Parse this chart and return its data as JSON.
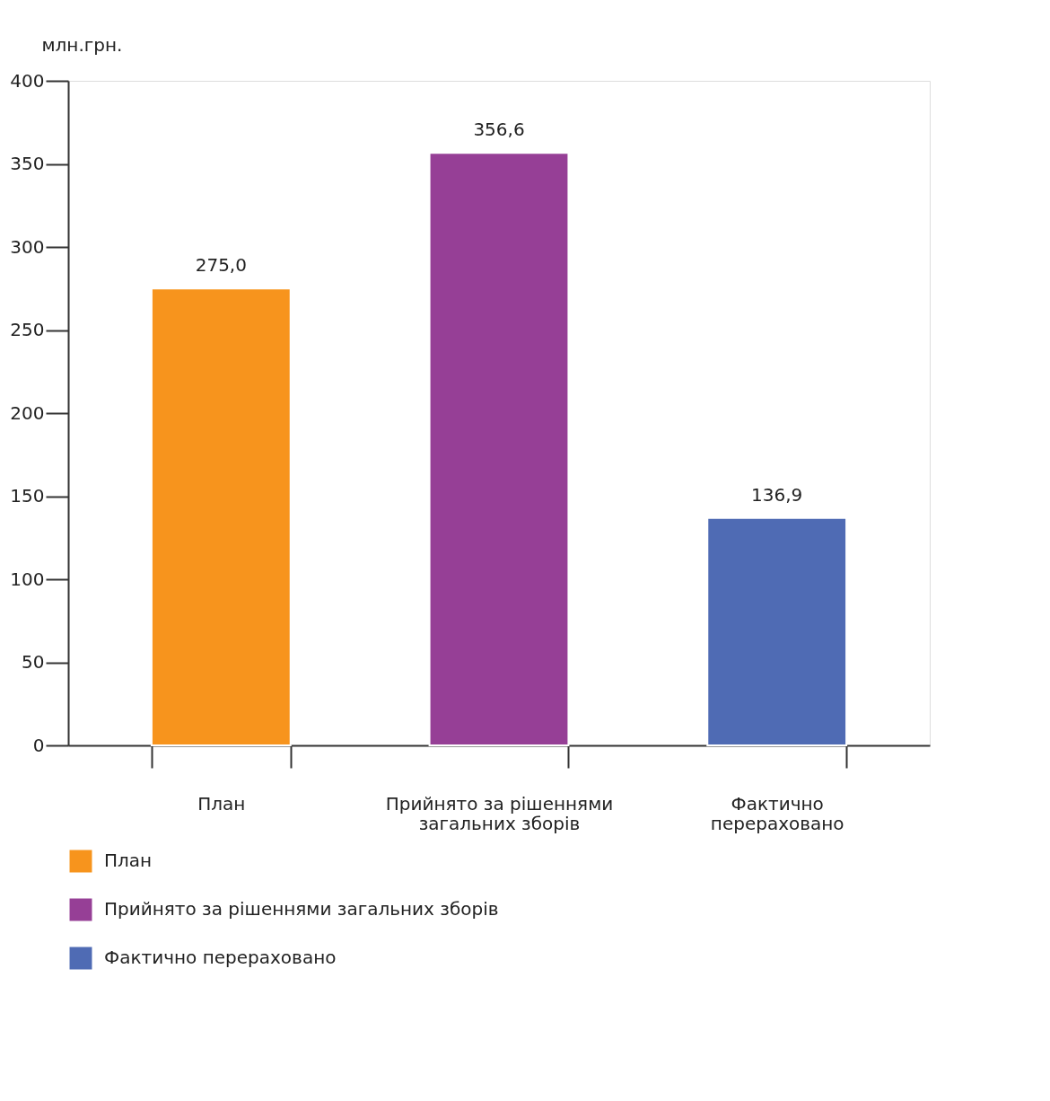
{
  "chart_data": {
    "type": "bar",
    "ylabel": "млн.грн.",
    "categories": [
      "План",
      "Прийнято за рішеннями загальних зборів",
      "Фактично перераховано"
    ],
    "stacked": true,
    "series": [
      {
        "name": "План",
        "color": "#f7941d",
        "values": [
          275.0,
          null,
          null
        ],
        "value_labels": [
          "275,0",
          null,
          null
        ]
      },
      {
        "name": "Прийнято за рішеннями загальних зборів",
        "color": "#963f96",
        "values": [
          null,
          356.6,
          null
        ],
        "value_labels": [
          null,
          "356,6",
          null
        ]
      },
      {
        "name": "Фактично перераховано",
        "color": "#4f6bb4",
        "values": [
          null,
          null,
          136.9
        ],
        "value_labels": [
          null,
          null,
          "136,9"
        ]
      }
    ],
    "ylim": [
      0,
      400
    ],
    "yticks": [
      0,
      50,
      100,
      150,
      200,
      250,
      300,
      350,
      400
    ],
    "grid": false,
    "legend": "bottom"
  }
}
